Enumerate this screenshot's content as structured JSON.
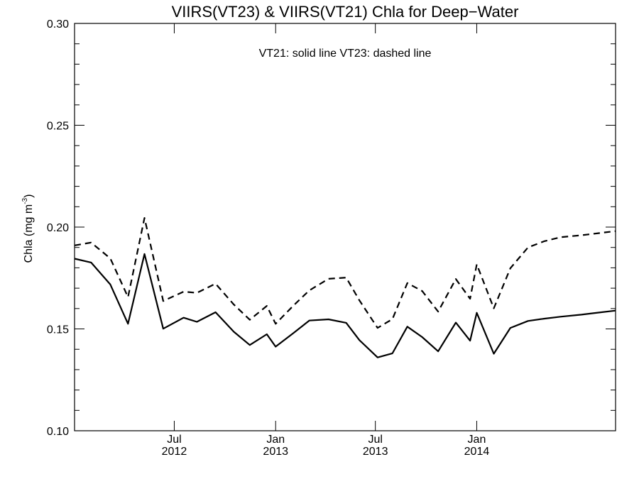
{
  "chart_data": {
    "type": "line",
    "title": "VIIRS(VT23) & VIIRS(VT21)  Chla for Deep−Water",
    "annotation": "VT21: solid line   VT23: dashed line",
    "ylabel": "Chla (mg m",
    "ylabel_sup": "-3",
    "ylabel_close": ")",
    "ylim": [
      0.1,
      0.3
    ],
    "xlim": [
      "2012-01-02",
      "2014-09-10"
    ],
    "y_ticks": [
      {
        "value": 0.1,
        "label": "0.10"
      },
      {
        "value": 0.15,
        "label": "0.15"
      },
      {
        "value": 0.2,
        "label": "0.20"
      },
      {
        "value": 0.25,
        "label": "0.25"
      },
      {
        "value": 0.3,
        "label": "0.30"
      }
    ],
    "x_ticks": [
      {
        "date": "2012-07-01",
        "label": "Jul",
        "year": "2012"
      },
      {
        "date": "2013-01-01",
        "label": "Jan",
        "year": "2013"
      },
      {
        "date": "2013-07-01",
        "label": "Jul",
        "year": "2013"
      },
      {
        "date": "2014-01-01",
        "label": "Jan",
        "year": "2014"
      }
    ],
    "x": [
      "2012-01-02",
      "2012-02-01",
      "2012-03-07",
      "2012-04-08",
      "2012-05-08",
      "2012-06-11",
      "2012-07-18",
      "2012-08-11",
      "2012-09-14",
      "2012-10-17",
      "2012-11-15",
      "2012-12-16",
      "2013-01-01",
      "2013-02-02",
      "2013-03-03",
      "2013-04-07",
      "2013-05-09",
      "2013-06-02",
      "2013-07-05",
      "2013-08-01",
      "2013-08-28",
      "2013-09-24",
      "2013-10-23",
      "2013-11-24",
      "2013-12-20",
      "2014-01-01",
      "2014-02-01",
      "2014-03-03",
      "2014-04-04",
      "2014-05-03",
      "2014-06-02",
      "2014-07-10",
      "2014-08-10",
      "2014-09-10"
    ],
    "series": [
      {
        "name": "VT21",
        "style": "solid",
        "values": [
          0.1845,
          0.1826,
          0.1718,
          0.1525,
          0.1868,
          0.1501,
          0.1555,
          0.1535,
          0.1582,
          0.1486,
          0.1421,
          0.1474,
          0.1413,
          0.1479,
          0.1541,
          0.1547,
          0.153,
          0.1445,
          0.136,
          0.138,
          0.1511,
          0.146,
          0.139,
          0.1531,
          0.1442,
          0.1579,
          0.1378,
          0.1505,
          0.1539,
          0.155,
          0.156,
          0.157,
          0.158,
          0.159
        ]
      },
      {
        "name": "VT23",
        "style": "dashed",
        "values": [
          0.191,
          0.1924,
          0.1846,
          0.1656,
          0.2045,
          0.1637,
          0.1683,
          0.1677,
          0.1722,
          0.162,
          0.1545,
          0.1613,
          0.1525,
          0.1614,
          0.1689,
          0.1746,
          0.1752,
          0.164,
          0.1505,
          0.1548,
          0.1725,
          0.1686,
          0.1585,
          0.1745,
          0.1648,
          0.1817,
          0.1601,
          0.1798,
          0.19,
          0.193,
          0.195,
          0.196,
          0.197,
          0.198
        ]
      }
    ]
  }
}
